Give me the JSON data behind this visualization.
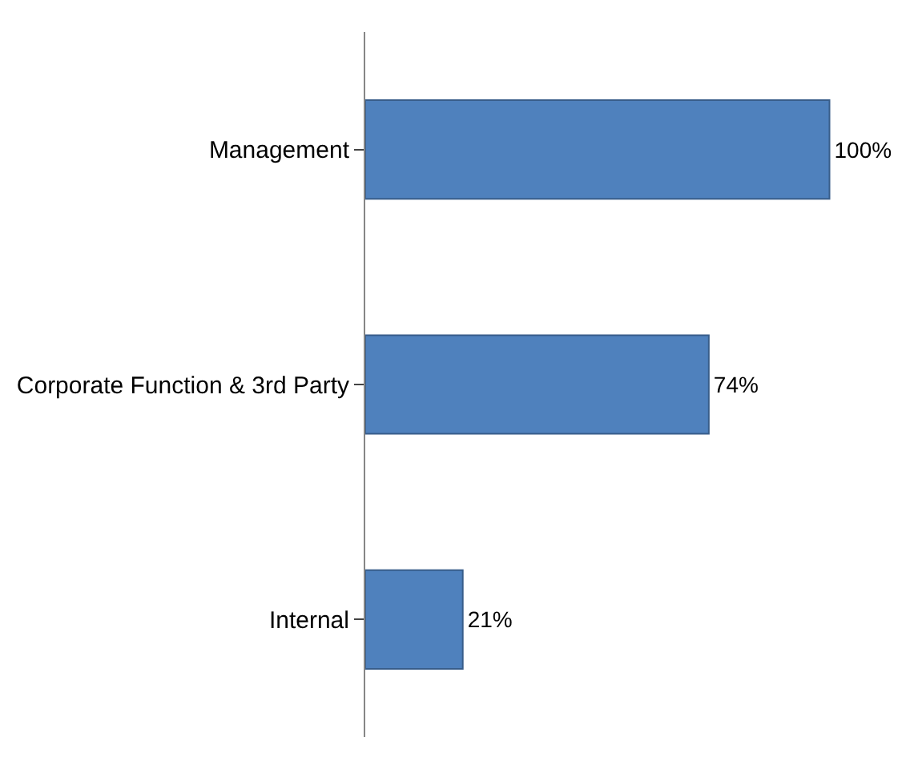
{
  "chart_data": {
    "type": "bar",
    "orientation": "horizontal",
    "categories": [
      "Management",
      "Corporate Function & 3rd Party",
      "Internal"
    ],
    "values": [
      100,
      74,
      21
    ],
    "value_labels": [
      "100%",
      "74%",
      "21%"
    ],
    "color": "#4f81bd",
    "tick_labels": "y"
  }
}
